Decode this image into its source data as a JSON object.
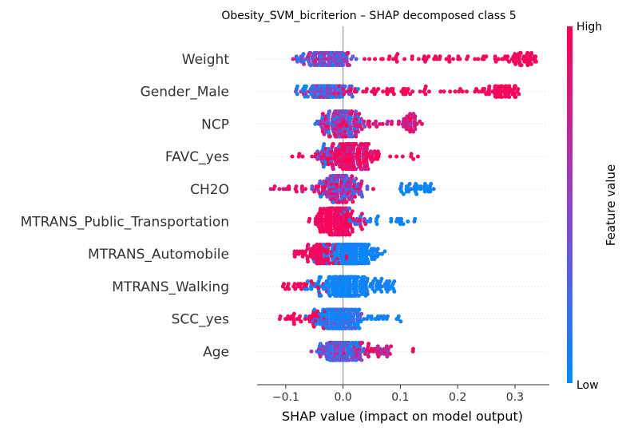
{
  "chart_data": {
    "type": "scatter",
    "subtype": "shap-beeswarm",
    "title": "Obesity_SVM_bicriterion – SHAP decomposed class 5",
    "xlabel": "SHAP value (impact on model output)",
    "xlim": [
      -0.15,
      0.36
    ],
    "xticks": [
      -0.1,
      0.0,
      0.1,
      0.2,
      0.3
    ],
    "xtick_labels": [
      "−0.1",
      "0.0",
      "0.1",
      "0.2",
      "0.3"
    ],
    "features": [
      {
        "name": "Weight",
        "min": -0.1,
        "max": 0.34,
        "spread": 0.35,
        "shape": "weight"
      },
      {
        "name": "Gender_Male",
        "min": -0.1,
        "max": 0.31,
        "spread": 0.3,
        "shape": "gender"
      },
      {
        "name": "NCP",
        "min": -0.05,
        "max": 0.15,
        "spread": 0.85,
        "shape": "ncp"
      },
      {
        "name": "FAVC_yes",
        "min": -0.095,
        "max": 0.155,
        "spread": 0.85,
        "shape": "favc"
      },
      {
        "name": "CH2O",
        "min": -0.13,
        "max": 0.16,
        "spread": 0.9,
        "shape": "ch2o"
      },
      {
        "name": "MTRANS_Public_Transportation",
        "min": -0.06,
        "max": 0.135,
        "spread": 0.9,
        "shape": "public"
      },
      {
        "name": "MTRANS_Automobile",
        "min": -0.085,
        "max": 0.075,
        "spread": 0.6,
        "shape": "auto"
      },
      {
        "name": "MTRANS_Walking",
        "min": -0.105,
        "max": 0.09,
        "spread": 0.6,
        "shape": "walking"
      },
      {
        "name": "SCC_yes",
        "min": -0.115,
        "max": 0.115,
        "spread": 0.6,
        "shape": "scc"
      },
      {
        "name": "Age",
        "min": -0.06,
        "max": 0.125,
        "spread": 0.55,
        "shape": "age"
      }
    ],
    "colorbar": {
      "high_label": "High",
      "low_label": "Low",
      "title": "Feature value",
      "low_color": "#008bfb",
      "high_color": "#ff0052"
    },
    "zero_line": 0.0,
    "grid": false
  }
}
